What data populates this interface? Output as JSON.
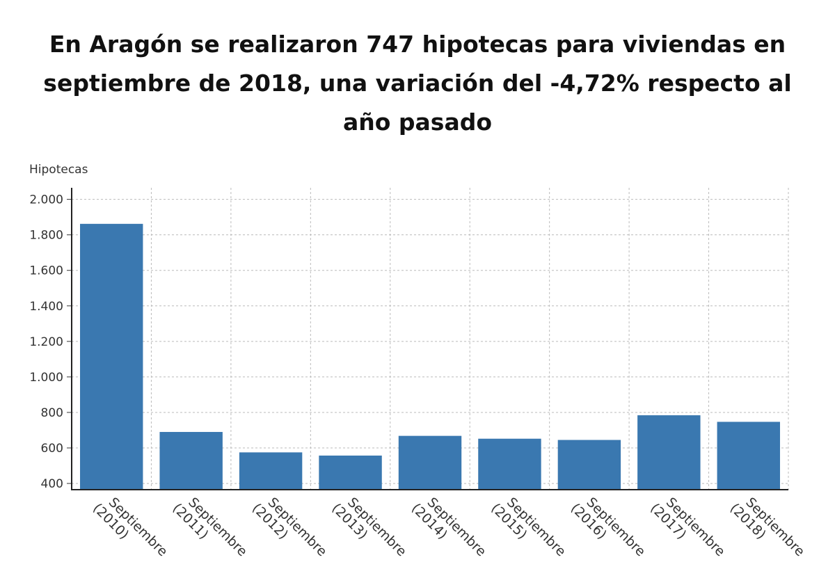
{
  "chart_data": {
    "type": "bar",
    "title": "En Aragón se realizaron 747 hipotecas para viviendas en septiembre de 2018, una variación del -4,72% respecto al año pasado",
    "ylabel": "Hipotecas",
    "xlabel": "",
    "categories": [
      "Septiembre (2010)",
      "Septiembre (2011)",
      "Septiembre (2012)",
      "Septiembre (2013)",
      "Septiembre (2014)",
      "Septiembre (2015)",
      "Septiembre (2016)",
      "Septiembre (2017)",
      "Septiembre (2018)"
    ],
    "category_lines": [
      [
        "Septiembre",
        "(2010)"
      ],
      [
        "Septiembre",
        "(2011)"
      ],
      [
        "Septiembre",
        "(2012)"
      ],
      [
        "Septiembre",
        "(2013)"
      ],
      [
        "Septiembre",
        "(2014)"
      ],
      [
        "Septiembre",
        "(2015)"
      ],
      [
        "Septiembre",
        "(2016)"
      ],
      [
        "Septiembre",
        "(2017)"
      ],
      [
        "Septiembre",
        "(2018)"
      ]
    ],
    "values": [
      1862,
      690,
      575,
      557,
      668,
      652,
      645,
      784,
      747
    ],
    "ylim": [
      365,
      2065
    ],
    "yticks": [
      400,
      600,
      800,
      1000,
      1200,
      1400,
      1600,
      1800,
      2000
    ],
    "ytick_labels": [
      "400",
      "600",
      "800",
      "1.000",
      "1.200",
      "1.400",
      "1.600",
      "1.800",
      "2.000"
    ],
    "grid": true,
    "bar_color": "#3a78b0",
    "grid_color": "#bbbbbb"
  }
}
